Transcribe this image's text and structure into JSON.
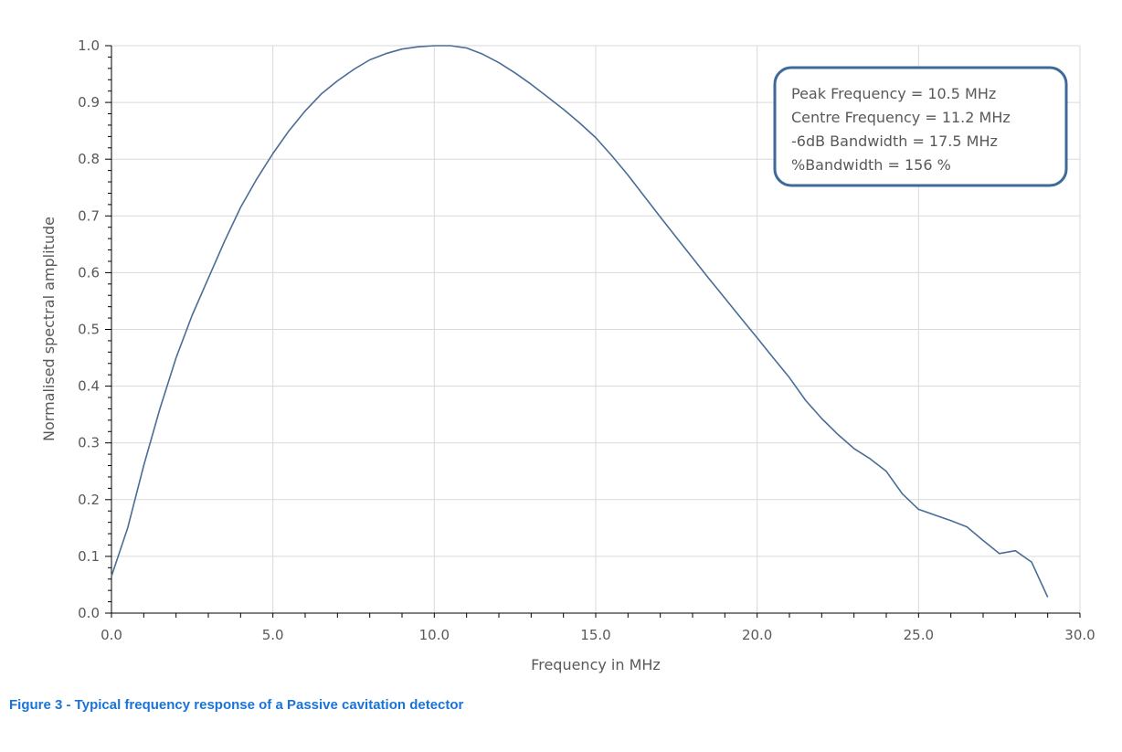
{
  "caption": "Figure 3 - Typical frequency response of a Passive cavitation detector",
  "chart_data": {
    "type": "line",
    "title": "",
    "xlabel": "Frequency in MHz",
    "ylabel": "Normalised spectral amplitude",
    "xlim": [
      0,
      30
    ],
    "ylim": [
      0,
      1
    ],
    "x_ticks": [
      "0.0",
      "5.0",
      "10.0",
      "15.0",
      "20.0",
      "25.0",
      "30.0"
    ],
    "y_ticks": [
      "0.0",
      "0.1",
      "0.2",
      "0.3",
      "0.4",
      "0.5",
      "0.6",
      "0.7",
      "0.8",
      "0.9",
      "1.0"
    ],
    "grid": true,
    "line_color": "#4a6d96",
    "annotation": {
      "lines": [
        "Peak Frequency = 10.5 MHz",
        "Centre Frequency = 11.2 MHz",
        "-6dB Bandwidth = 17.5 MHz",
        "%Bandwidth = 156 %"
      ],
      "border_color": "#3d6a99"
    },
    "series": [
      {
        "x": [
          0.0,
          0.5,
          1.0,
          1.5,
          2.0,
          2.5,
          3.0,
          3.5,
          4.0,
          4.5,
          5.0,
          5.5,
          6.0,
          6.5,
          7.0,
          7.5,
          8.0,
          8.5,
          9.0,
          9.5,
          10.0,
          10.5,
          11.0,
          11.5,
          12.0,
          12.5,
          13.0,
          13.5,
          14.0,
          14.5,
          15.0,
          15.5,
          16.0,
          16.5,
          17.0,
          17.5,
          18.0,
          18.5,
          19.0,
          19.5,
          20.0,
          20.5,
          21.0,
          21.5,
          22.0,
          22.5,
          23.0,
          23.5,
          24.0,
          24.5,
          25.0,
          25.5,
          26.0,
          26.5,
          27.0,
          27.5,
          28.0,
          28.5,
          29.0
        ],
        "y": [
          0.065,
          0.15,
          0.26,
          0.36,
          0.45,
          0.525,
          0.59,
          0.655,
          0.715,
          0.765,
          0.81,
          0.85,
          0.885,
          0.915,
          0.938,
          0.958,
          0.975,
          0.986,
          0.994,
          0.998,
          1.0,
          1.0,
          0.996,
          0.985,
          0.97,
          0.952,
          0.932,
          0.91,
          0.888,
          0.864,
          0.838,
          0.806,
          0.772,
          0.735,
          0.698,
          0.662,
          0.626,
          0.59,
          0.555,
          0.52,
          0.485,
          0.45,
          0.415,
          0.375,
          0.343,
          0.315,
          0.29,
          0.272,
          0.25,
          0.21,
          0.183,
          0.173,
          0.163,
          0.152,
          0.128,
          0.105,
          0.11,
          0.09,
          0.028
        ]
      }
    ]
  }
}
